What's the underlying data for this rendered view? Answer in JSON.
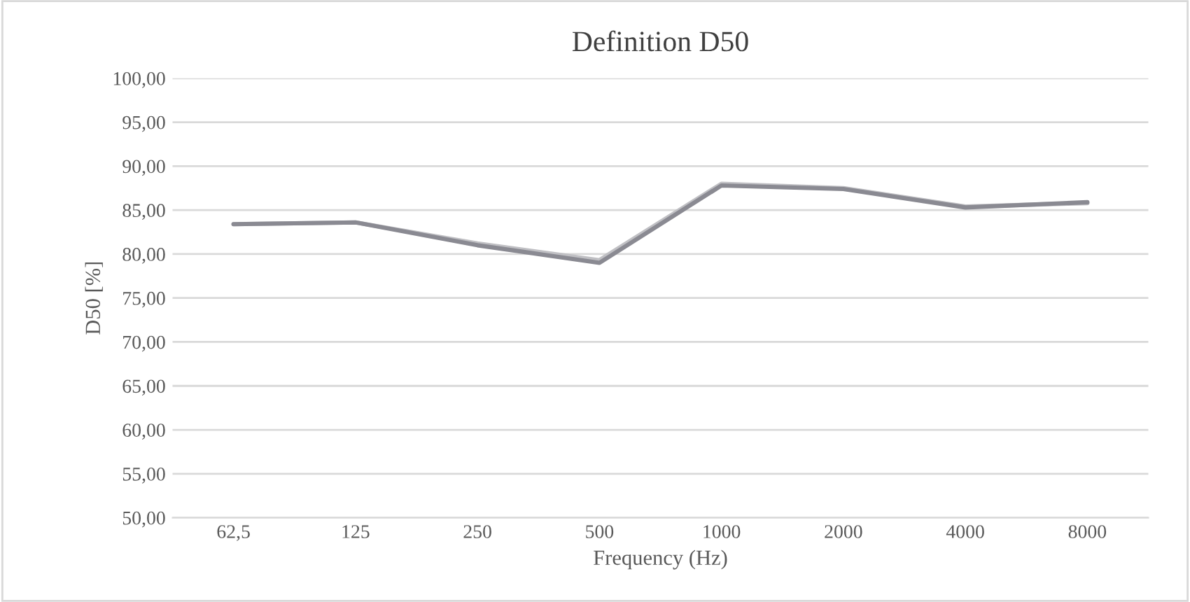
{
  "chart_data": {
    "type": "line",
    "title": "Definition D50",
    "xlabel": "Frequency (Hz)",
    "ylabel": "D50 [%]",
    "categories": [
      "62,5",
      "125",
      "250",
      "500",
      "1000",
      "2000",
      "4000",
      "8000"
    ],
    "series": [
      {
        "color": "#c0c0c4",
        "values": [
          83.4,
          83.6,
          81.2,
          79.3,
          88.0,
          87.5,
          85.4,
          85.8
        ]
      },
      {
        "color": "#8a8a92",
        "values": [
          83.4,
          83.6,
          81.0,
          79.0,
          87.8,
          87.4,
          85.3,
          85.9
        ]
      }
    ],
    "ylim": [
      50,
      100
    ],
    "yticks": [
      {
        "value": 50,
        "label": "50,00"
      },
      {
        "value": 55,
        "label": "55,00"
      },
      {
        "value": 60,
        "label": "60,00"
      },
      {
        "value": 65,
        "label": "65,00"
      },
      {
        "value": 70,
        "label": "70,00"
      },
      {
        "value": 75,
        "label": "75,00"
      },
      {
        "value": 80,
        "label": "80,00"
      },
      {
        "value": 85,
        "label": "85,00"
      },
      {
        "value": 90,
        "label": "90,00"
      },
      {
        "value": 95,
        "label": "95,00"
      },
      {
        "value": 100,
        "label": "100,00"
      }
    ],
    "grid": "y",
    "legend": false,
    "marker": "none",
    "line_style": "solid"
  }
}
